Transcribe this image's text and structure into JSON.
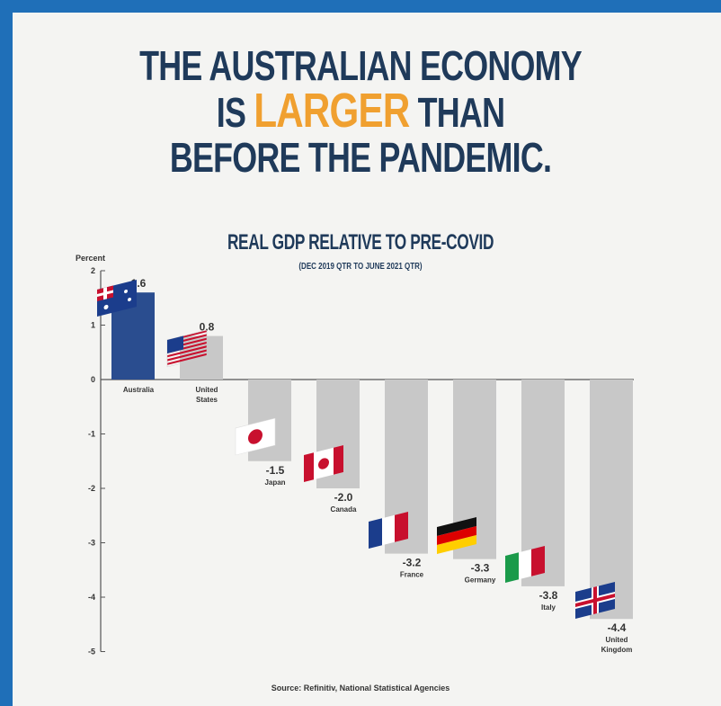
{
  "headline": {
    "line1": "THE AUSTRALIAN ECONOMY",
    "line2_pre": "IS ",
    "line2_accent": "LARGER",
    "line2_post": " THAN",
    "line3": "BEFORE THE PANDEMIC."
  },
  "chart_data": {
    "type": "bar",
    "title": "REAL GDP RELATIVE TO PRE-COVID",
    "subtitle": "(DEC 2019 QTR TO JUNE 2021 QTR)",
    "ylabel": "Percent",
    "ylim": [
      -5,
      2
    ],
    "yticks": [
      "2",
      "1",
      "0",
      "-1",
      "-2",
      "-3",
      "-4",
      "-5"
    ],
    "categories": [
      "Australia",
      "United States",
      "Japan",
      "Canada",
      "France",
      "Germany",
      "Italy",
      "United Kingdom"
    ],
    "values": [
      1.6,
      0.8,
      -1.5,
      -2.0,
      -3.2,
      -3.3,
      -3.8,
      -4.4
    ],
    "value_labels": [
      "1.6",
      "0.8",
      "-1.5",
      "-2.0",
      "-3.2",
      "-3.3",
      "-3.8",
      "-4.4"
    ],
    "colors": {
      "highlight": "#2a4d8f",
      "default": "#c8c8c8"
    },
    "source": "Source: Refinitiv, National Statistical Agencies"
  }
}
